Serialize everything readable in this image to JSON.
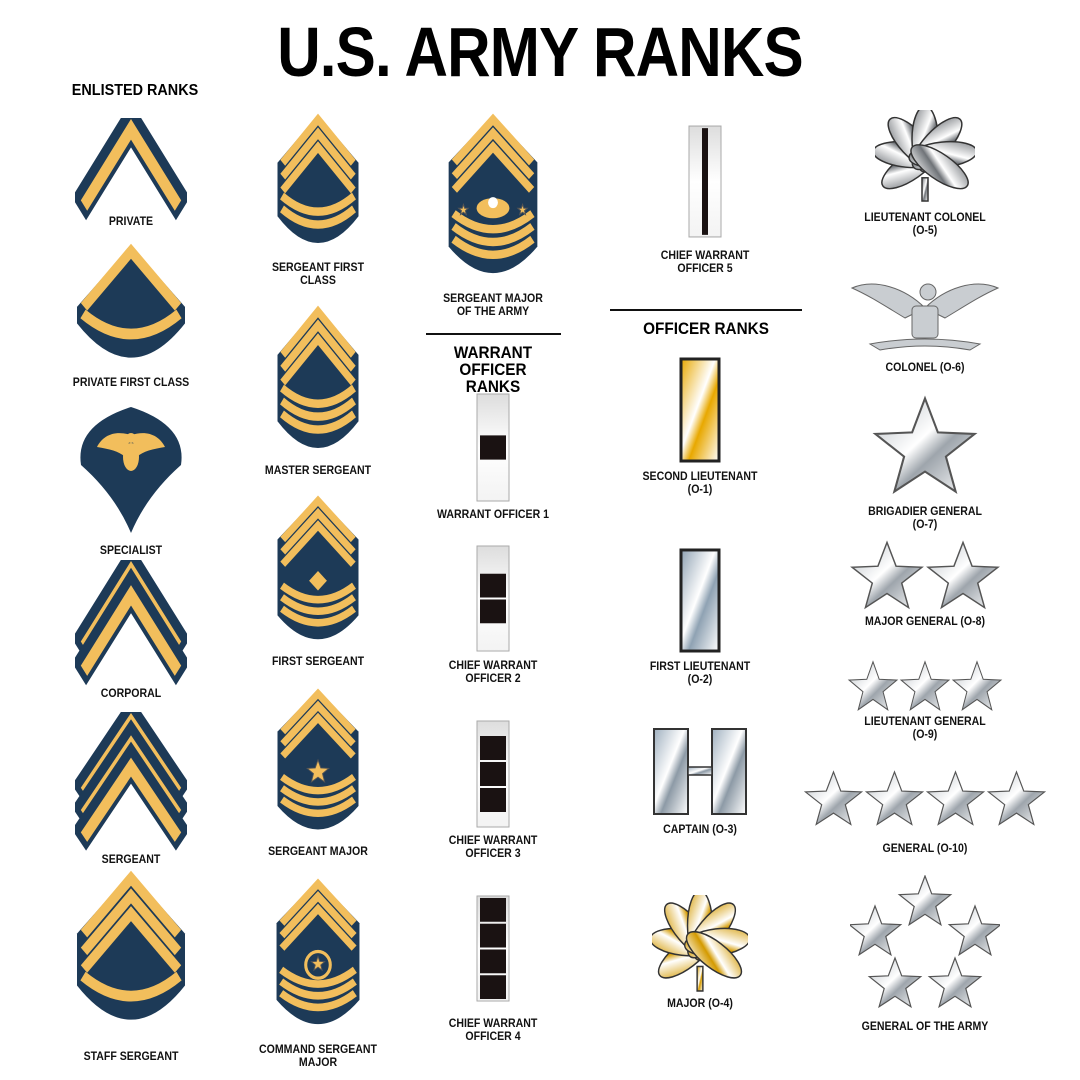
{
  "title": "U.S. ARMY RANKS",
  "headings": {
    "enlisted": "ENLISTED RANKS",
    "warrant": "WARRANT OFFICER\nRANKS",
    "officer": "OFFICER RANKS"
  },
  "colors": {
    "navy": "#1d3a57",
    "gold": "#f2be5c",
    "brass": "#e8a800",
    "silver": "#c7cdd3",
    "black": "#1a1212"
  },
  "ranks": [
    {
      "id": "pvt",
      "label": "PRIVATE",
      "insignia": "1 chevron"
    },
    {
      "id": "pfc",
      "label": "PRIVATE FIRST CLASS",
      "insignia": "1 chevron, 1 rocker"
    },
    {
      "id": "spc",
      "label": "SPECIALIST",
      "insignia": "eagle spade"
    },
    {
      "id": "cpl",
      "label": "CORPORAL",
      "insignia": "2 chevrons"
    },
    {
      "id": "sgt",
      "label": "SERGEANT",
      "insignia": "3 chevrons"
    },
    {
      "id": "ssg",
      "label": "STAFF SERGEANT",
      "insignia": "3 chevrons, 1 rocker"
    },
    {
      "id": "sfc",
      "label": "SERGEANT FIRST\nCLASS",
      "insignia": "3 chevrons, 2 rockers"
    },
    {
      "id": "msg",
      "label": "MASTER SERGEANT",
      "insignia": "3 chevrons, 3 rockers"
    },
    {
      "id": "1sg",
      "label": "FIRST SERGEANT",
      "insignia": "3 chevrons, 3 rockers, diamond"
    },
    {
      "id": "sgm",
      "label": "SERGEANT MAJOR",
      "insignia": "3 chevrons, 3 rockers, star"
    },
    {
      "id": "csm",
      "label": "COMMAND SERGEANT\nMAJOR",
      "insignia": "3 chevrons, 3 rockers, star in wreath"
    },
    {
      "id": "sma",
      "label": "SERGEANT MAJOR\nOF THE ARMY",
      "insignia": "3 chevrons, 3 rockers, eagle with stars"
    },
    {
      "id": "wo1",
      "label": "WARRANT OFFICER 1",
      "insignia": "bar, 1 square"
    },
    {
      "id": "cw2",
      "label": "CHIEF WARRANT\nOFFICER 2",
      "insignia": "bar, 2 squares"
    },
    {
      "id": "cw3",
      "label": "CHIEF WARRANT\nOFFICER 3",
      "insignia": "bar, 3 squares"
    },
    {
      "id": "cw4",
      "label": "CHIEF WARRANT\nOFFICER 4",
      "insignia": "bar, 4 squares"
    },
    {
      "id": "cw5",
      "label": "CHIEF WARRANT\nOFFICER 5",
      "insignia": "bar, stripe"
    },
    {
      "id": "o1",
      "label": "SECOND LIEUTENANT\n(O-1)",
      "insignia": "gold bar"
    },
    {
      "id": "o2",
      "label": "FIRST LIEUTENANT\n(O-2)",
      "insignia": "silver bar"
    },
    {
      "id": "o3",
      "label": "CAPTAIN (O-3)",
      "insignia": "two silver bars"
    },
    {
      "id": "o4",
      "label": "MAJOR (O-4)",
      "insignia": "gold oak leaf"
    },
    {
      "id": "o5",
      "label": "LIEUTENANT COLONEL\n(O-5)",
      "insignia": "silver oak leaf"
    },
    {
      "id": "o6",
      "label": "COLONEL (O-6)",
      "insignia": "silver eagle"
    },
    {
      "id": "o7",
      "label": "BRIGADIER GENERAL\n(O-7)",
      "insignia": "1 star"
    },
    {
      "id": "o8",
      "label": "MAJOR GENERAL (O-8)",
      "insignia": "2 stars"
    },
    {
      "id": "o9",
      "label": "LIEUTENANT GENERAL\n(O-9)",
      "insignia": "3 stars"
    },
    {
      "id": "o10",
      "label": "GENERAL (O-10)",
      "insignia": "4 stars"
    },
    {
      "id": "goa",
      "label": "GENERAL OF THE ARMY",
      "insignia": "5 stars in pentagon"
    }
  ]
}
